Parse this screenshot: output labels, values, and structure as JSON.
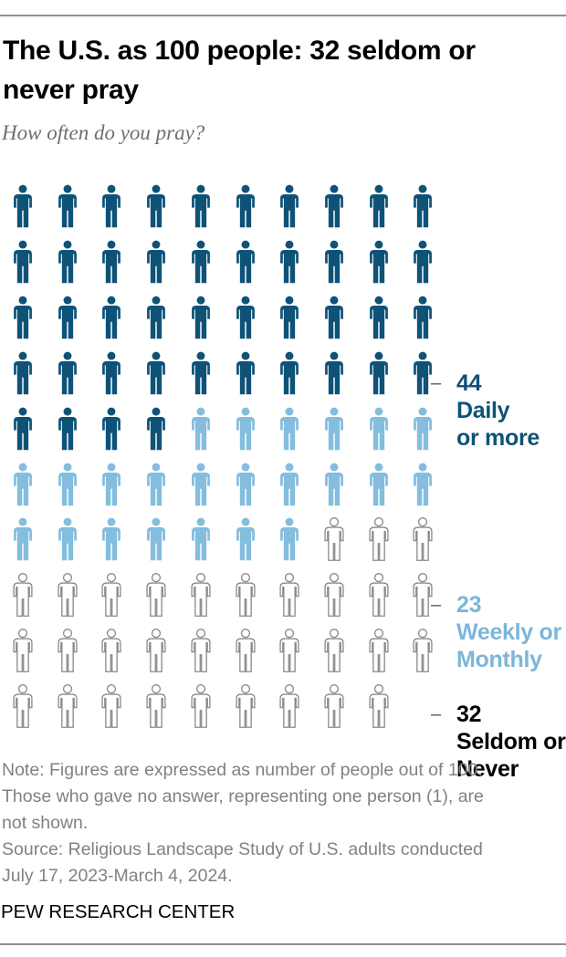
{
  "header": {
    "title": "The U.S. as 100 people: 32 seldom or never pray",
    "title_lines": [
      "The U.S. as 100 people: 32 seldom or",
      "never pray"
    ],
    "subtitle": "How often do you pray?"
  },
  "chart_data": {
    "type": "pictogram",
    "title": "The U.S. as 100 people: 32 seldom or never pray",
    "question": "How often do you pray?",
    "unit": "people out of 100",
    "icons_per_row": 10,
    "total_icons_shown": 99,
    "tick_char": "–",
    "categories": [
      "Daily or more",
      "Weekly or Monthly",
      "Seldom or Never"
    ],
    "values": [
      44,
      23,
      32
    ],
    "series": [
      {
        "name": "Daily or more",
        "value": 44,
        "fill": "#0E5278",
        "label_color": "#0E5278",
        "label_lines": [
          "44",
          "Daily",
          "or more"
        ]
      },
      {
        "name": "Weekly or Monthly",
        "value": 23,
        "fill": "#84BDDE",
        "label_color": "#7CB6DA",
        "label_lines": [
          "23",
          "Weekly or",
          "Monthly"
        ]
      },
      {
        "name": "Seldom or Never",
        "value": 32,
        "fill": "#FFFFFF",
        "outline": "#8A8A8A",
        "label_color": "#000000",
        "label_lines": [
          "32",
          "Seldom or",
          "Never"
        ]
      }
    ],
    "layout": {
      "grid": false,
      "legend_position": "right-of-rows"
    }
  },
  "footer": {
    "note_lines": [
      "Note: Figures are expressed as number of people out of 100.",
      "Those who gave no answer, representing one person (1), are",
      "not shown."
    ],
    "source_lines": [
      "Source: Religious Landscape Study of U.S. adults conducted",
      "July 17, 2023-March 4, 2024."
    ],
    "brand": "PEW RESEARCH CENTER"
  }
}
